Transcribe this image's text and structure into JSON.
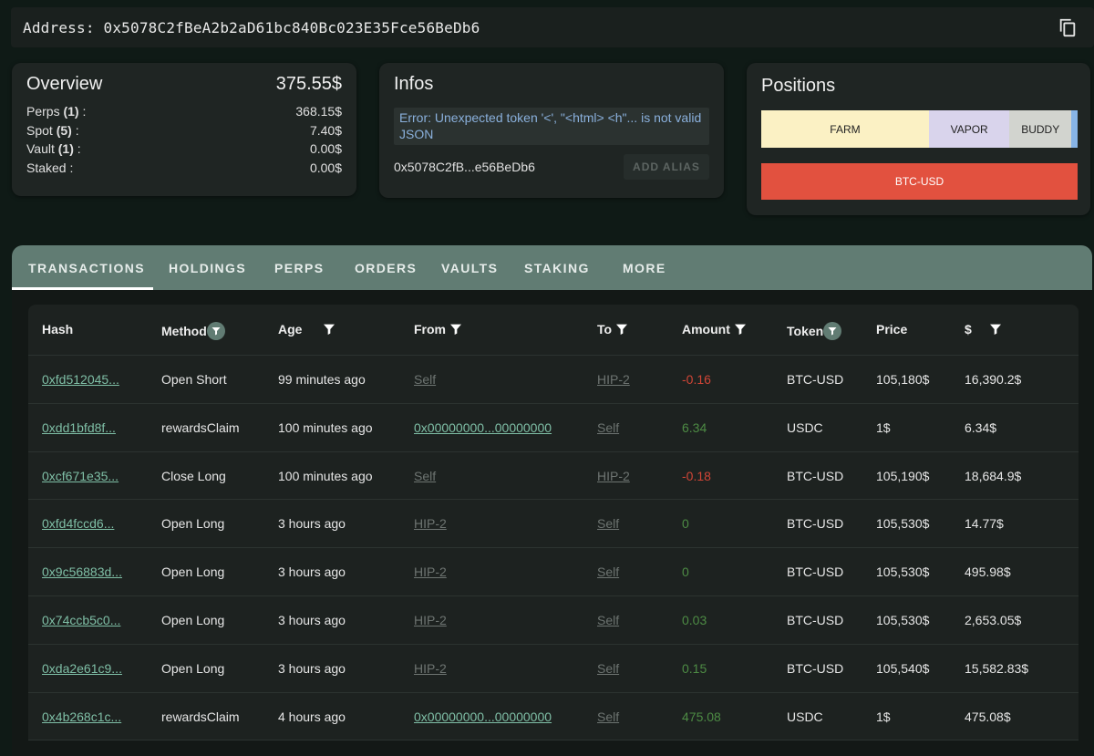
{
  "address_bar": {
    "text": "Address: 0x5078C2fBeA2b2aD61bc840Bc023E35Fce56BeDb6",
    "icon": "copy-icon"
  },
  "overview": {
    "title": "Overview",
    "total": "375.55$",
    "rows": [
      {
        "label": "Perps",
        "count": "(1)",
        "suffix": " :",
        "value": "368.15$"
      },
      {
        "label": "Spot",
        "count": "(5)",
        "suffix": " :",
        "value": "7.40$"
      },
      {
        "label": "Vault",
        "count": "(1)",
        "suffix": " :",
        "value": "0.00$"
      },
      {
        "label": "Staked",
        "count": "",
        "suffix": " :",
        "value": "0.00$"
      }
    ]
  },
  "infos": {
    "title": "Infos",
    "error": "Error: Unexpected token '<', \"<html> <h\"... is not valid JSON",
    "short_address": "0x5078C2fB...e56BeDb6",
    "alias_button": "ADD ALIAS"
  },
  "positions": {
    "title": "Positions",
    "segments": [
      {
        "label": "FARM",
        "color": "#fbf1c4",
        "share": 0.53
      },
      {
        "label": "VAPOR",
        "color": "#d9d4ec",
        "share": 0.255
      },
      {
        "label": "BUDDY",
        "color": "#d2d4cf",
        "share": 0.195
      },
      {
        "label": "",
        "color": "#87b4e6",
        "share": 0.02
      }
    ],
    "long_position": {
      "label": "BTC-USD",
      "color": "#e2513f"
    }
  },
  "tabs": [
    "TRANSACTIONS",
    "HOLDINGS",
    "PERPS",
    "ORDERS",
    "VAULTS",
    "STAKING",
    "MORE"
  ],
  "table": {
    "headers": [
      "Hash",
      "Method",
      "Age",
      "From",
      "To",
      "Amount",
      "Token",
      "Price",
      "$"
    ],
    "rows": [
      {
        "hash": "0xfd512045...",
        "method": "Open Short",
        "age": "99 minutes ago",
        "from": "Self",
        "to": "HIP-2",
        "amount": "-0.16",
        "token": "BTC-USD",
        "price": "105,180$",
        "usd": "16,390.2$"
      },
      {
        "hash": "0xdd1bfd8f...",
        "method": "rewardsClaim",
        "age": "100 minutes ago",
        "from": "0x00000000...00000000",
        "to": "Self",
        "amount": "6.34",
        "token": "USDC",
        "price": "1$",
        "usd": "6.34$"
      },
      {
        "hash": "0xcf671e35...",
        "method": "Close Long",
        "age": "100 minutes ago",
        "from": "Self",
        "to": "HIP-2",
        "amount": "-0.18",
        "token": "BTC-USD",
        "price": "105,190$",
        "usd": "18,684.9$"
      },
      {
        "hash": "0xfd4fccd6...",
        "method": "Open Long",
        "age": "3 hours ago",
        "from": "HIP-2",
        "to": "Self",
        "amount": "0",
        "token": "BTC-USD",
        "price": "105,530$",
        "usd": "14.77$"
      },
      {
        "hash": "0x9c56883d...",
        "method": "Open Long",
        "age": "3 hours ago",
        "from": "HIP-2",
        "to": "Self",
        "amount": "0",
        "token": "BTC-USD",
        "price": "105,530$",
        "usd": "495.98$"
      },
      {
        "hash": "0x74ccb5c0...",
        "method": "Open Long",
        "age": "3 hours ago",
        "from": "HIP-2",
        "to": "Self",
        "amount": "0.03",
        "token": "BTC-USD",
        "price": "105,530$",
        "usd": "2,653.05$"
      },
      {
        "hash": "0xda2e61c9...",
        "method": "Open Long",
        "age": "3 hours ago",
        "from": "HIP-2",
        "to": "Self",
        "amount": "0.15",
        "token": "BTC-USD",
        "price": "105,540$",
        "usd": "15,582.83$"
      },
      {
        "hash": "0x4b268c1c...",
        "method": "rewardsClaim",
        "age": "4 hours ago",
        "from": "0x00000000...00000000",
        "to": "Self",
        "amount": "475.08",
        "token": "USDC",
        "price": "1$",
        "usd": "475.08$"
      }
    ]
  }
}
